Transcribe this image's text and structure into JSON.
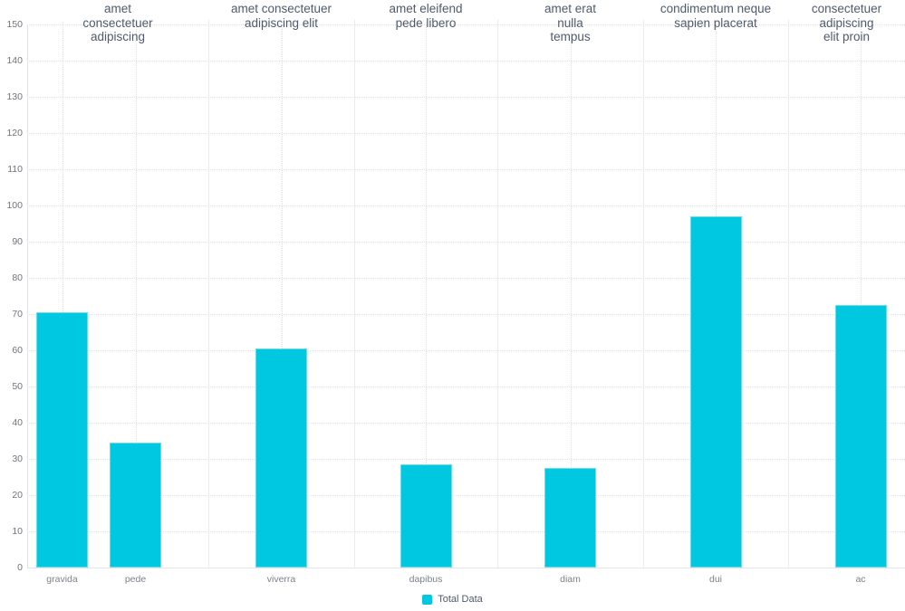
{
  "chart_data": {
    "type": "bar",
    "title": "",
    "xlabel": "",
    "ylabel": "",
    "ylim": [
      0,
      150
    ],
    "ytick_step": 10,
    "grid": true,
    "bar_color": "#00c8e0",
    "legend": {
      "label": "Total Data",
      "position": "bottom-center",
      "color": "#00c8e0"
    },
    "categories": [
      "gravida",
      "pede",
      "viverra",
      "dapibus",
      "diam",
      "dui",
      "ac"
    ],
    "series": [
      {
        "name": "Total Data",
        "values": [
          70.5,
          34.5,
          60.5,
          28.5,
          27.5,
          97,
          72.5
        ]
      }
    ],
    "groups": [
      {
        "label": "amet consectetuer adipiscing",
        "label_lines": [
          "amet",
          "consectetuer",
          "adipiscing"
        ],
        "bars": [
          {
            "category": "gravida",
            "value": 70.5
          },
          {
            "category": "pede",
            "value": 34.5
          }
        ]
      },
      {
        "label": "amet consectetuer adipiscing elit",
        "label_lines": [
          "amet consectetuer",
          "adipiscing elit"
        ],
        "bars": [
          {
            "category": "viverra",
            "value": 60.5
          }
        ]
      },
      {
        "label": "amet eleifend pede libero",
        "label_lines": [
          "amet eleifend",
          "pede libero"
        ],
        "bars": [
          {
            "category": "dapibus",
            "value": 28.5
          }
        ]
      },
      {
        "label": "amet erat nulla tempus",
        "label_lines": [
          "amet erat",
          "nulla",
          "tempus"
        ],
        "bars": [
          {
            "category": "diam",
            "value": 27.5
          }
        ]
      },
      {
        "label": "condimentum neque sapien placerat",
        "label_lines": [
          "condimentum neque",
          "sapien placerat"
        ],
        "bars": [
          {
            "category": "dui",
            "value": 97
          }
        ]
      },
      {
        "label": "consectetuer adipiscing elit proin",
        "label_lines": [
          "consectetuer",
          "adipiscing",
          "elit proin"
        ],
        "bars": [
          {
            "category": "ac",
            "value": 72.5
          }
        ]
      }
    ]
  }
}
